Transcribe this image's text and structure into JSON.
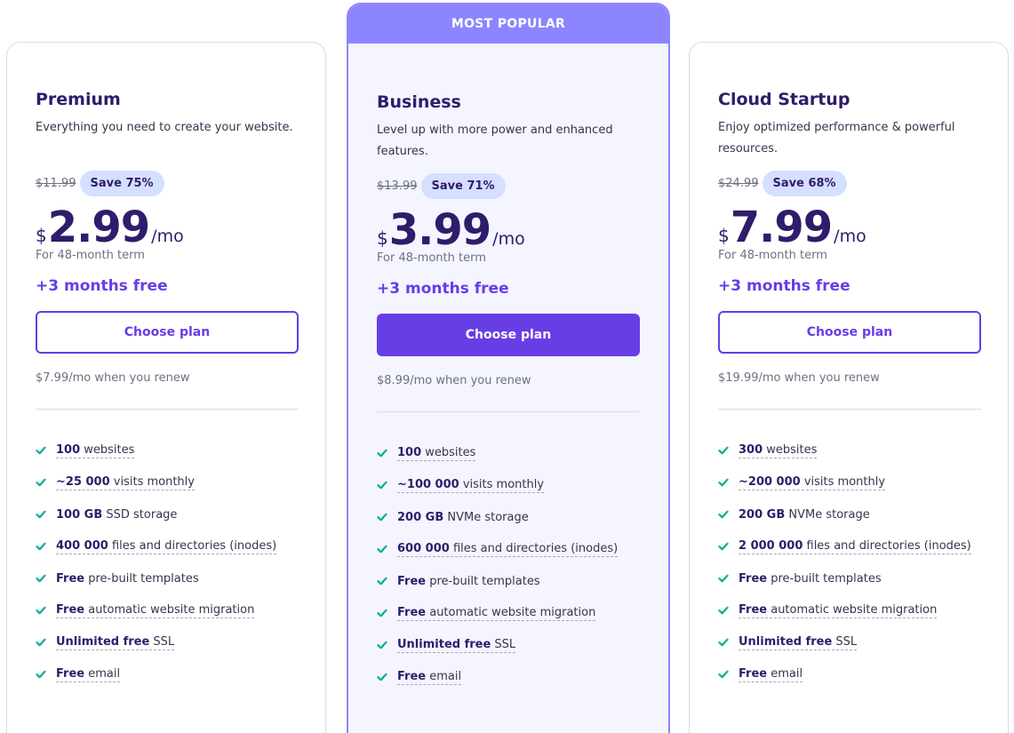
{
  "colors": {
    "accent": "#673de6",
    "banner": "#8c85ff",
    "badge": "#d5dfff",
    "check": "#00b090",
    "heading": "#2f1c6a"
  },
  "plans": [
    {
      "title": "Premium",
      "description": "Everything you need to create your website.",
      "old_price": "$11.99",
      "save": "Save 75%",
      "currency": "$",
      "amount": "2.99",
      "per": "/mo",
      "term": "For 48-month term",
      "free": "+3 months free",
      "button": "Choose plan",
      "renew": "$7.99/mo when you renew",
      "features": [
        {
          "bold": "100",
          "text": " websites"
        },
        {
          "bold": "~25 000",
          "text": " visits monthly"
        },
        {
          "bold": "100 GB",
          "text": " SSD storage"
        },
        {
          "bold": "400 000",
          "text": " files and directories (inodes)"
        },
        {
          "bold": "Free",
          "text": " pre-built templates"
        },
        {
          "bold": "Free",
          "text": " automatic website migration"
        },
        {
          "bold": "Unlimited free",
          "text": " SSL"
        },
        {
          "bold": "Free",
          "text": " email"
        }
      ]
    },
    {
      "banner": "MOST POPULAR",
      "title": "Business",
      "description": "Level up with more power and enhanced features.",
      "old_price": "$13.99",
      "save": "Save 71%",
      "currency": "$",
      "amount": "3.99",
      "per": "/mo",
      "term": "For 48-month term",
      "free": "+3 months free",
      "button": "Choose plan",
      "renew": "$8.99/mo when you renew",
      "features": [
        {
          "bold": "100",
          "text": " websites"
        },
        {
          "bold": "~100 000",
          "text": " visits monthly"
        },
        {
          "bold": "200 GB",
          "text": " NVMe storage"
        },
        {
          "bold": "600 000",
          "text": " files and directories (inodes)"
        },
        {
          "bold": "Free",
          "text": " pre-built templates"
        },
        {
          "bold": "Free",
          "text": " automatic website migration"
        },
        {
          "bold": "Unlimited free",
          "text": " SSL"
        },
        {
          "bold": "Free",
          "text": " email"
        }
      ]
    },
    {
      "title": "Cloud Startup",
      "description": "Enjoy optimized performance & powerful resources.",
      "old_price": "$24.99",
      "save": "Save 68%",
      "currency": "$",
      "amount": "7.99",
      "per": "/mo",
      "term": "For 48-month term",
      "free": "+3 months free",
      "button": "Choose plan",
      "renew": "$19.99/mo when you renew",
      "features": [
        {
          "bold": "300",
          "text": " websites"
        },
        {
          "bold": "~200 000",
          "text": " visits monthly"
        },
        {
          "bold": "200 GB",
          "text": " NVMe storage"
        },
        {
          "bold": "2 000 000",
          "text": " files and directories (inodes)"
        },
        {
          "bold": "Free",
          "text": " pre-built templates"
        },
        {
          "bold": "Free",
          "text": " automatic website migration"
        },
        {
          "bold": "Unlimited free",
          "text": " SSL"
        },
        {
          "bold": "Free",
          "text": " email"
        }
      ]
    }
  ]
}
